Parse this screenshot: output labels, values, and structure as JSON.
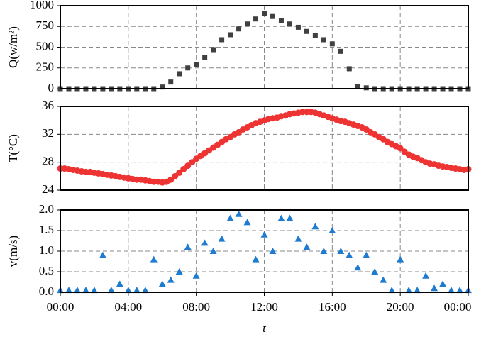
{
  "chart_data": [
    {
      "type": "scatter",
      "marker": "square",
      "ylabel": "Q(w/m²)",
      "color": "#404040",
      "xlim": [
        0,
        24
      ],
      "ylim": [
        0,
        1000
      ],
      "yticks": [
        0,
        250,
        500,
        750,
        1000
      ],
      "grid": true,
      "x": [
        0,
        0.5,
        1,
        1.5,
        2,
        2.5,
        3,
        3.5,
        4,
        4.5,
        5,
        5.5,
        6,
        6.5,
        7,
        7.5,
        8,
        8.5,
        9,
        9.5,
        10,
        10.5,
        11,
        11.5,
        12,
        12.5,
        13,
        13.5,
        14,
        14.5,
        15,
        15.5,
        16,
        16.5,
        17,
        17.5,
        18,
        18.5,
        19,
        19.5,
        20,
        20.5,
        21,
        21.5,
        22,
        22.5,
        23,
        23.5,
        24
      ],
      "values": [
        0,
        0,
        0,
        0,
        0,
        0,
        0,
        0,
        0,
        0,
        0,
        0,
        20,
        80,
        180,
        250,
        290,
        380,
        470,
        590,
        650,
        720,
        780,
        840,
        910,
        870,
        820,
        780,
        740,
        690,
        640,
        590,
        540,
        450,
        240,
        30,
        10,
        0,
        0,
        0,
        0,
        0,
        0,
        0,
        0,
        0,
        0,
        0,
        0
      ]
    },
    {
      "type": "scatter",
      "marker": "circle",
      "ylabel": "T(°C)",
      "color": "#ee3333",
      "xlim": [
        0,
        24
      ],
      "ylim": [
        24,
        36
      ],
      "yticks": [
        24,
        28,
        32,
        36
      ],
      "grid": true,
      "x": [
        0,
        0.25,
        0.5,
        0.75,
        1,
        1.25,
        1.5,
        1.75,
        2,
        2.25,
        2.5,
        2.75,
        3,
        3.25,
        3.5,
        3.75,
        4,
        4.25,
        4.5,
        4.75,
        5,
        5.25,
        5.5,
        5.75,
        6,
        6.25,
        6.5,
        6.75,
        7,
        7.25,
        7.5,
        7.75,
        8,
        8.25,
        8.5,
        8.75,
        9,
        9.25,
        9.5,
        9.75,
        10,
        10.25,
        10.5,
        10.75,
        11,
        11.25,
        11.5,
        11.75,
        12,
        12.25,
        12.5,
        12.75,
        13,
        13.25,
        13.5,
        13.75,
        14,
        14.25,
        14.5,
        14.75,
        15,
        15.25,
        15.5,
        15.75,
        16,
        16.25,
        16.5,
        16.75,
        17,
        17.25,
        17.5,
        17.75,
        18,
        18.25,
        18.5,
        18.75,
        19,
        19.25,
        19.5,
        19.75,
        20,
        20.25,
        20.5,
        20.75,
        21,
        21.25,
        21.5,
        21.75,
        22,
        22.25,
        22.5,
        22.75,
        23,
        23.25,
        23.5,
        23.75,
        24
      ],
      "values": [
        27.1,
        27.1,
        27.0,
        26.9,
        26.8,
        26.7,
        26.6,
        26.6,
        26.5,
        26.4,
        26.3,
        26.2,
        26.1,
        26.0,
        25.9,
        25.8,
        25.7,
        25.6,
        25.5,
        25.5,
        25.4,
        25.3,
        25.2,
        25.2,
        25.1,
        25.2,
        25.5,
        26.0,
        26.5,
        27.0,
        27.5,
        28.0,
        28.5,
        28.9,
        29.3,
        29.7,
        30.1,
        30.5,
        30.9,
        31.3,
        31.6,
        32.0,
        32.3,
        32.7,
        33.0,
        33.3,
        33.6,
        33.8,
        34.0,
        34.2,
        34.3,
        34.4,
        34.6,
        34.7,
        34.9,
        35.0,
        35.1,
        35.2,
        35.2,
        35.2,
        35.1,
        34.9,
        34.7,
        34.5,
        34.3,
        34.1,
        33.9,
        33.8,
        33.6,
        33.4,
        33.2,
        33.0,
        32.7,
        32.3,
        32.0,
        31.6,
        31.3,
        30.9,
        30.6,
        30.3,
        30.0,
        29.5,
        29.1,
        28.8,
        28.6,
        28.3,
        28.0,
        27.8,
        27.7,
        27.5,
        27.4,
        27.3,
        27.2,
        27.1,
        27.0,
        26.9,
        27.0
      ]
    },
    {
      "type": "scatter",
      "marker": "triangle",
      "ylabel": "v(m/s)",
      "xlabel": "t",
      "color": "#1f7bd0",
      "xlim": [
        0,
        24
      ],
      "xticks": [
        {
          "value": 0,
          "label": "00:00"
        },
        {
          "value": 4,
          "label": "04:00"
        },
        {
          "value": 8,
          "label": "08:00"
        },
        {
          "value": 12,
          "label": "12:00"
        },
        {
          "value": 16,
          "label": "16:00"
        },
        {
          "value": 20,
          "label": "20:00"
        },
        {
          "value": 24,
          "label": "00:00"
        }
      ],
      "ylim": [
        0,
        2
      ],
      "yticks": [
        {
          "value": 0,
          "label": "0.0"
        },
        0.5,
        {
          "value": 1,
          "label": "1.0"
        },
        1.5,
        {
          "value": 2,
          "label": "2.0"
        }
      ],
      "grid": true,
      "x": [
        0,
        0.5,
        1,
        1.5,
        2,
        2.5,
        3,
        3.5,
        4,
        4.5,
        5,
        5.5,
        6,
        6.5,
        7,
        7.5,
        8,
        8.5,
        9,
        9.5,
        10,
        10.5,
        11,
        11.5,
        12,
        12.5,
        13,
        13.5,
        14,
        14.5,
        15,
        15.5,
        16,
        16.5,
        17,
        17.5,
        18,
        18.5,
        19,
        19.5,
        20,
        20.5,
        21,
        21.5,
        22,
        22.5,
        23,
        23.5,
        24
      ],
      "values": [
        0.05,
        0.05,
        0.05,
        0.05,
        0.05,
        0.9,
        0.05,
        0.2,
        0.05,
        0.05,
        0.05,
        0.8,
        0.2,
        0.3,
        0.5,
        1.1,
        0.4,
        1.2,
        1.0,
        1.3,
        1.8,
        1.9,
        1.7,
        0.8,
        1.4,
        1.0,
        1.8,
        1.8,
        1.3,
        1.1,
        1.6,
        1.0,
        1.5,
        1.0,
        0.9,
        0.6,
        0.9,
        0.5,
        0.3,
        0.05,
        0.8,
        0.05,
        0.05,
        0.4,
        0.1,
        0.2,
        0.05,
        0.05,
        0.05
      ]
    }
  ]
}
